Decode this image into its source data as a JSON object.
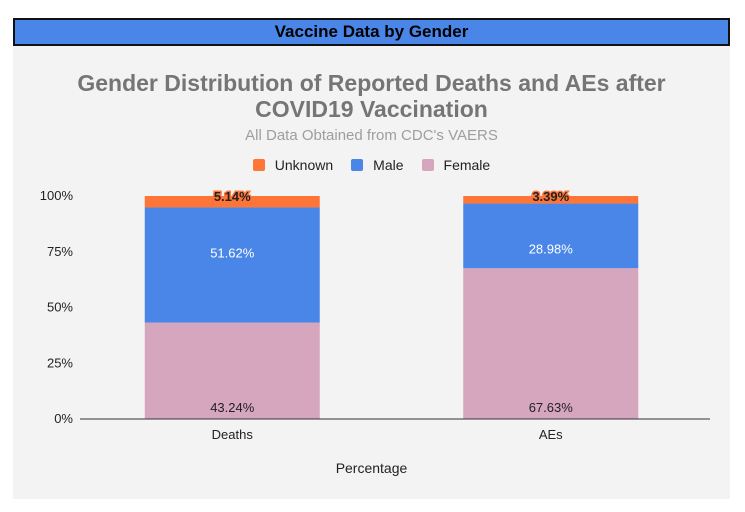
{
  "header": {
    "title": "Vaccine Data by Gender"
  },
  "chart_data": {
    "type": "bar",
    "stacked": true,
    "title_line1": "Gender Distribution of Reported Deaths and AEs after",
    "title_line2": "COVID19 Vaccination",
    "subtitle": "All Data Obtained from CDC's VAERS",
    "xlabel": "Percentage",
    "ylabel": "",
    "categories": [
      "Deaths",
      "AEs"
    ],
    "series": [
      {
        "name": "Female",
        "color": "#d5a6bd",
        "values": [
          43.24,
          67.63
        ],
        "labels": [
          "43.24%",
          "67.63%"
        ]
      },
      {
        "name": "Male",
        "color": "#4a86e8",
        "values": [
          51.62,
          28.98
        ],
        "labels": [
          "51.62%",
          "28.98%"
        ]
      },
      {
        "name": "Unknown",
        "color": "#ff7537",
        "values": [
          5.14,
          3.39
        ],
        "labels": [
          "5.14%",
          "3.39%"
        ]
      }
    ],
    "legend_order": [
      "Unknown",
      "Male",
      "Female"
    ],
    "yticks": [
      "0%",
      "25%",
      "50%",
      "75%",
      "100%"
    ],
    "ylim": [
      0,
      100
    ],
    "grid": false,
    "legend_position": "top"
  }
}
